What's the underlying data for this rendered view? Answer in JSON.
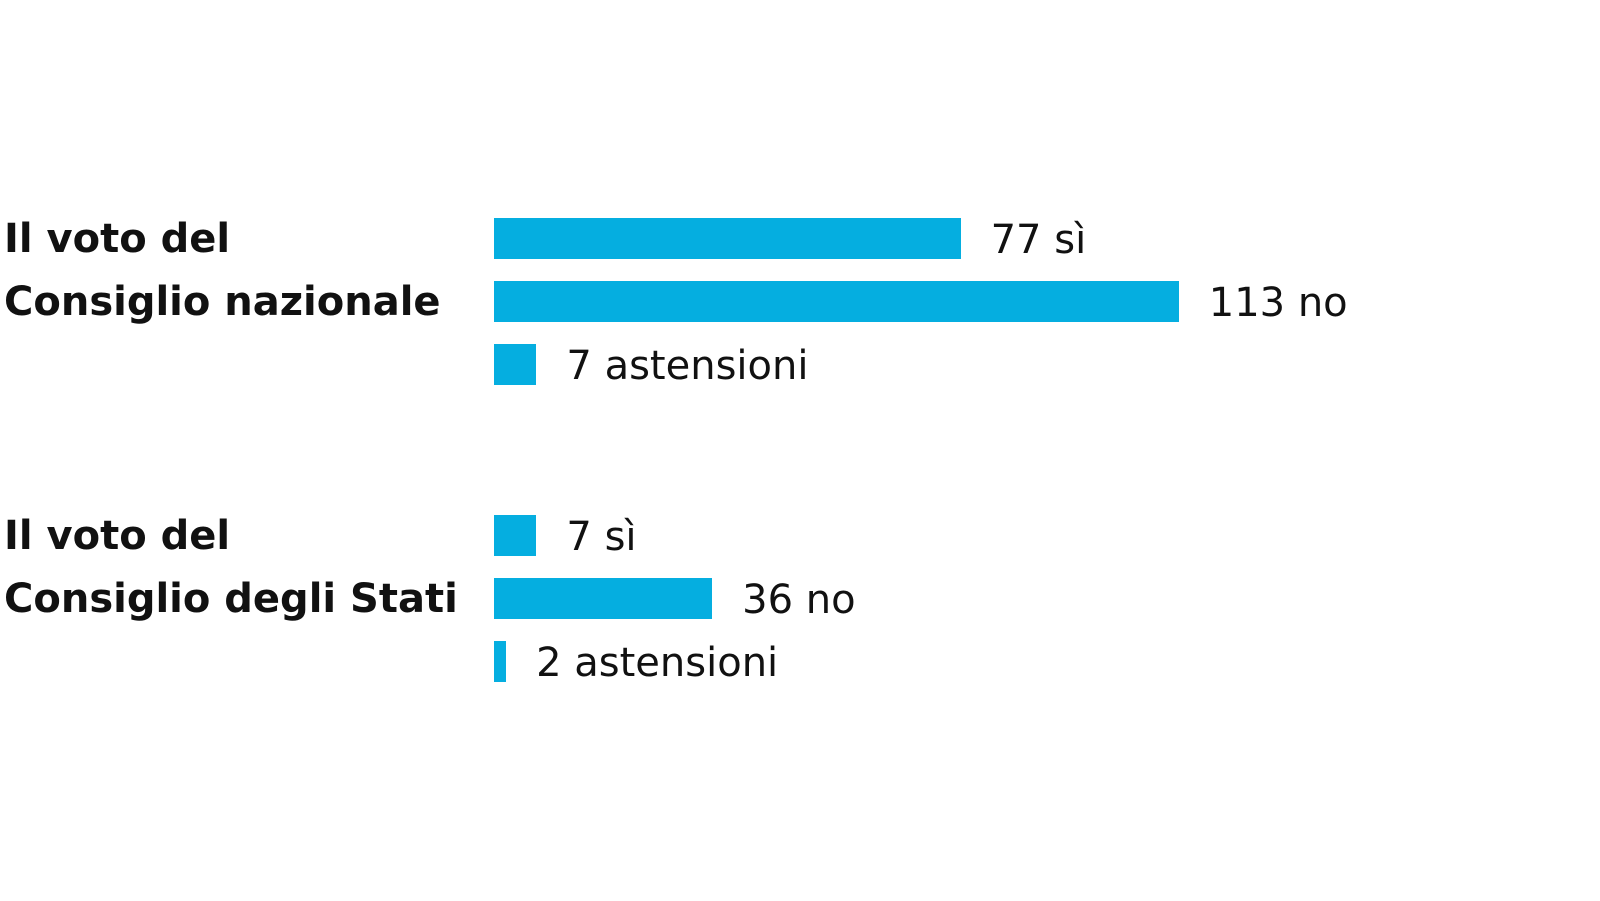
{
  "chart_data": [
    {
      "type": "bar",
      "title": "Il voto del\nConsiglio nazionale",
      "color": "#05aee0",
      "values": [
        77,
        113,
        7
      ],
      "value_labels": [
        "77 sì",
        "113 no",
        "7 astensioni"
      ]
    },
    {
      "type": "bar",
      "title": "Il voto del\nConsiglio degli Stati",
      "color": "#05aee0",
      "values": [
        7,
        36,
        2
      ],
      "value_labels": [
        "7 sì",
        "36 no",
        "2 astensioni"
      ]
    }
  ]
}
